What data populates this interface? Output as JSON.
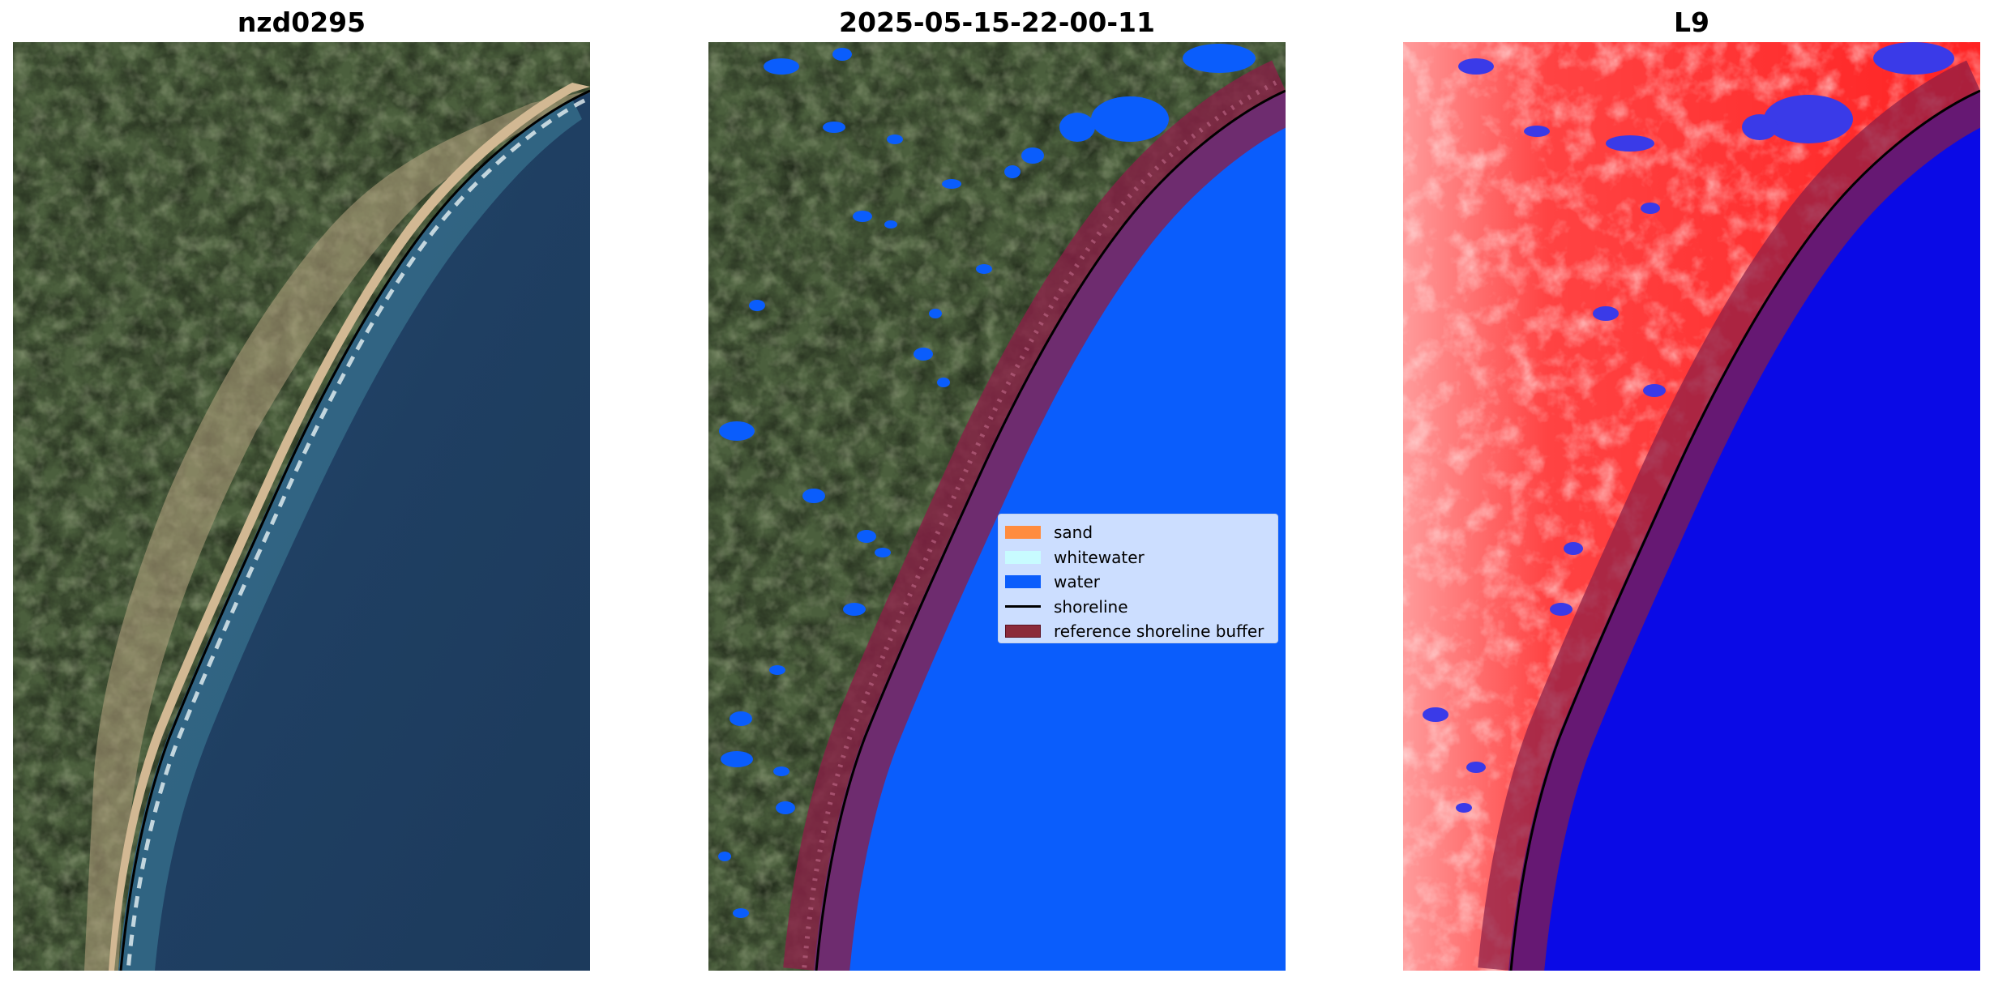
{
  "panels": [
    {
      "title": "nzd0295"
    },
    {
      "title": "2025-05-15-22-00-11"
    },
    {
      "title": "L9"
    }
  ],
  "legend": {
    "items": [
      {
        "label": "sand",
        "kind": "patch",
        "color": "#ff8c3f"
      },
      {
        "label": "whitewater",
        "kind": "patch",
        "color": "#c8fbff"
      },
      {
        "label": "water",
        "kind": "patch",
        "color": "#0a5dfc"
      },
      {
        "label": "shoreline",
        "kind": "line",
        "color": "#000000"
      },
      {
        "label": "reference shoreline buffer",
        "kind": "patch",
        "color": "#8b2a3a"
      }
    ]
  },
  "colors": {
    "land_green": "#4a5e3c",
    "sea_rgb": "#1f3e60",
    "sand_beach": "#cdb38f",
    "water_class": "#0a5dfc",
    "buffer": "#8b1f47",
    "index_red": "#ff2020",
    "index_blue": "#0a0ae6",
    "shoreline": "#000000"
  }
}
